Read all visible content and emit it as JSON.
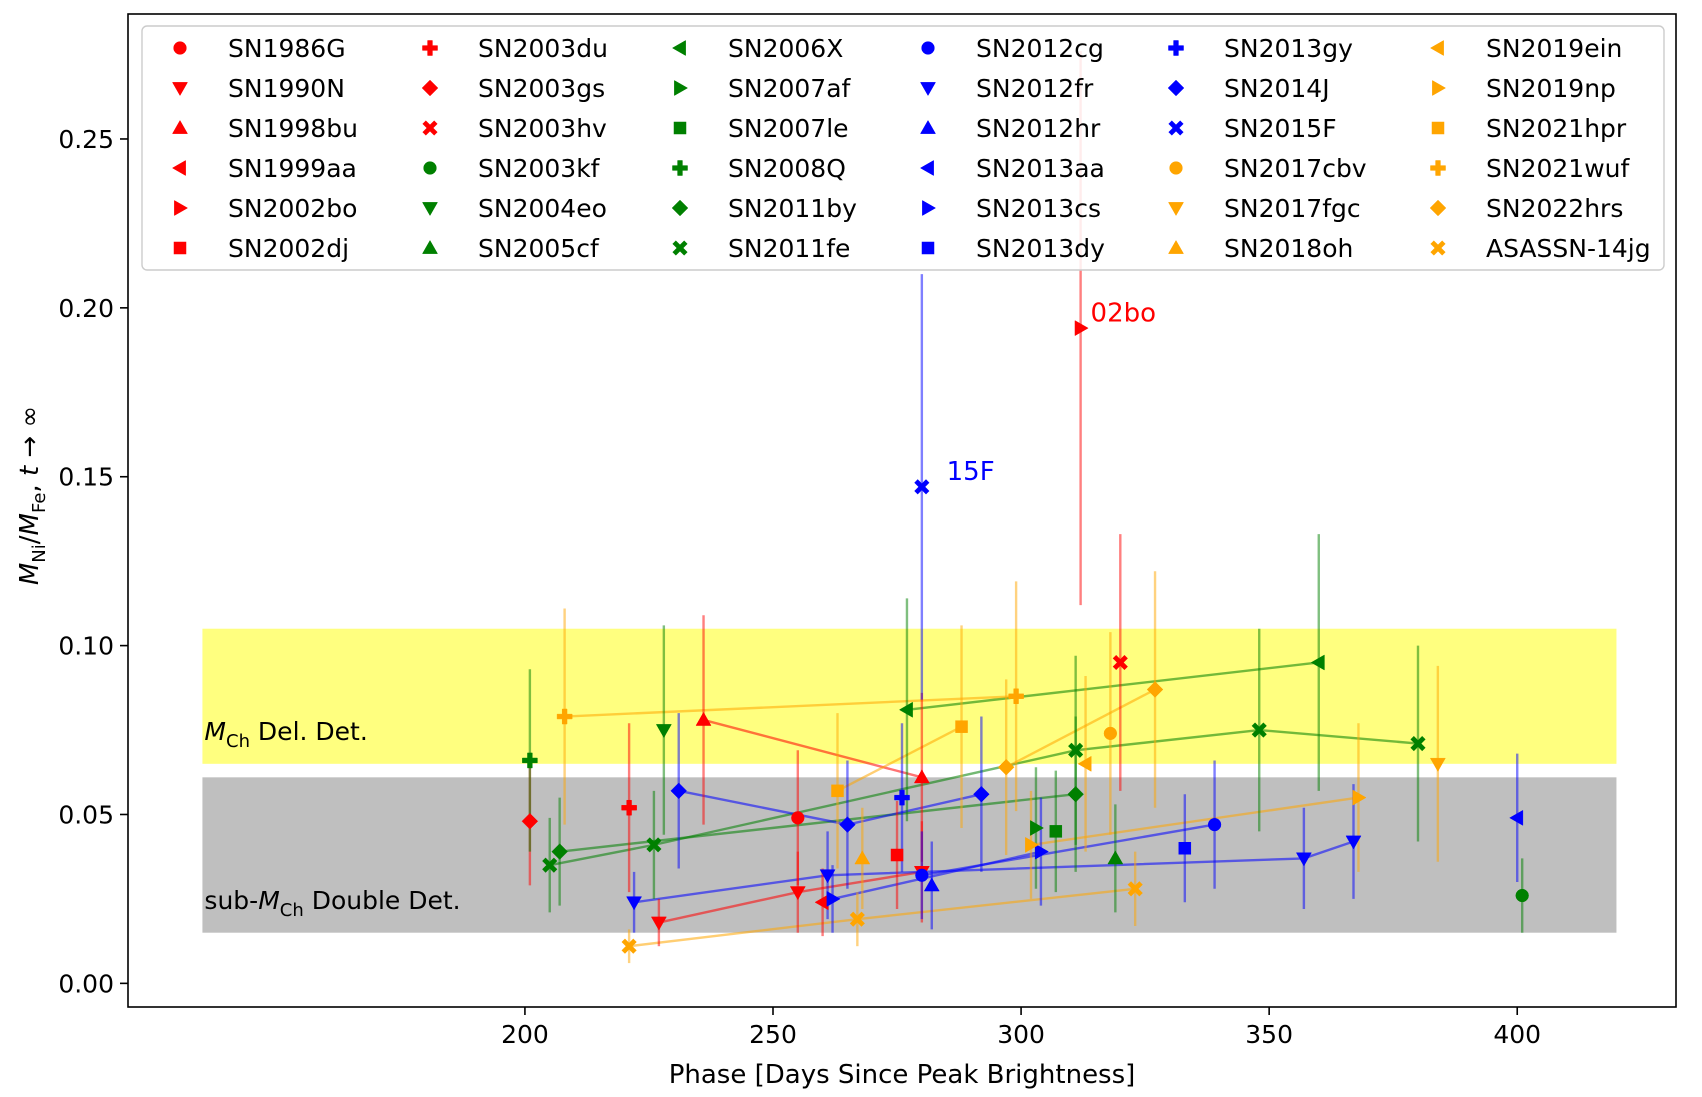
{
  "chart_data": {
    "type": "scatter",
    "title": "",
    "xlabel": "Phase [Days Since Peak Brightness]",
    "ylabel_html": {
      "m": "M",
      "ni": "Ni",
      "slash": "/",
      "m2": "M",
      "fe": "Fe",
      "rest": ", ",
      "t": "t",
      "arrow": " → ∞"
    },
    "xlim": [
      120,
      432
    ],
    "ylim": [
      -0.007,
      0.287
    ],
    "xticks": [
      200,
      250,
      300,
      350,
      400
    ],
    "yticks": [
      0.0,
      0.05,
      0.1,
      0.15,
      0.2,
      0.25
    ],
    "ytick_labels": [
      "0.00",
      "0.05",
      "0.10",
      "0.15",
      "0.20",
      "0.25"
    ],
    "grid": false,
    "legend_position": "top",
    "bands": [
      {
        "name": "mch-band",
        "y0": 0.065,
        "y1": 0.105,
        "x0": 135,
        "x1": 420,
        "color": "#ffff00",
        "alpha": 0.5,
        "label_prefix": "",
        "label_m": "M",
        "label_sub": "Ch",
        "label_suffix": " Del. Det.",
        "label_y": 0.072
      },
      {
        "name": "subch-band",
        "y0": 0.015,
        "y1": 0.061,
        "x0": 135,
        "x1": 420,
        "color": "#808080",
        "alpha": 0.5,
        "label_prefix": "sub-",
        "label_m": "M",
        "label_sub": "Ch",
        "label_suffix": " Double Det.",
        "label_y": 0.022
      }
    ],
    "annotations": [
      {
        "text": "02bo",
        "x": 314,
        "y": 0.196,
        "color": "#ff0000"
      },
      {
        "text": "15F",
        "x": 285,
        "y": 0.149,
        "color": "#0000ff"
      }
    ],
    "series": [
      {
        "name": "SN1986G",
        "color": "#ff0000",
        "marker": "circle",
        "points": [
          [
            255,
            0.049,
            0.02
          ]
        ]
      },
      {
        "name": "SN1990N",
        "color": "#ff0000",
        "marker": "triangle-down",
        "points": [
          [
            227,
            0.018,
            0.007
          ],
          [
            255,
            0.027,
            0.012
          ],
          [
            280,
            0.033,
            0.015
          ]
        ]
      },
      {
        "name": "SN1998bu",
        "color": "#ff0000",
        "marker": "triangle-up",
        "points": [
          [
            236,
            0.078,
            0.031
          ],
          [
            280,
            0.061,
            0.025
          ]
        ]
      },
      {
        "name": "SN1999aa",
        "color": "#ff0000",
        "marker": "triangle-left",
        "points": [
          [
            260,
            0.024,
            0.01
          ]
        ]
      },
      {
        "name": "SN2002bo",
        "color": "#ff0000",
        "marker": "triangle-right",
        "points": [
          [
            312,
            0.194,
            0.082
          ]
        ]
      },
      {
        "name": "SN2002dj",
        "color": "#ff0000",
        "marker": "square",
        "points": [
          [
            275,
            0.038,
            0.016
          ]
        ]
      },
      {
        "name": "SN2003du",
        "color": "#ff0000",
        "marker": "plus",
        "points": [
          [
            221,
            0.052,
            0.025
          ]
        ]
      },
      {
        "name": "SN2003gs",
        "color": "#ff0000",
        "marker": "diamond",
        "points": [
          [
            201,
            0.048,
            0.019
          ]
        ]
      },
      {
        "name": "SN2003hv",
        "color": "#ff0000",
        "marker": "x",
        "points": [
          [
            320,
            0.095,
            0.038
          ]
        ]
      },
      {
        "name": "SN2003kf",
        "color": "#008000",
        "marker": "circle",
        "points": [
          [
            401,
            0.026,
            0.011
          ]
        ]
      },
      {
        "name": "SN2004eo",
        "color": "#008000",
        "marker": "triangle-down",
        "points": [
          [
            228,
            0.075,
            0.031
          ]
        ]
      },
      {
        "name": "SN2005cf",
        "color": "#008000",
        "marker": "triangle-up",
        "points": [
          [
            319,
            0.037,
            0.016
          ]
        ]
      },
      {
        "name": "SN2006X",
        "color": "#008000",
        "marker": "triangle-left",
        "points": [
          [
            277,
            0.081,
            0.033
          ],
          [
            360,
            0.095,
            0.038
          ]
        ]
      },
      {
        "name": "SN2007af",
        "color": "#008000",
        "marker": "triangle-right",
        "points": [
          [
            303,
            0.046,
            0.018
          ]
        ]
      },
      {
        "name": "SN2007le",
        "color": "#008000",
        "marker": "square",
        "points": [
          [
            307,
            0.045,
            0.018
          ]
        ]
      },
      {
        "name": "SN2008Q",
        "color": "#008000",
        "marker": "plus",
        "points": [
          [
            201,
            0.066,
            0.027
          ]
        ]
      },
      {
        "name": "SN2011by",
        "color": "#008000",
        "marker": "diamond",
        "points": [
          [
            207,
            0.039,
            0.016
          ],
          [
            311,
            0.056,
            0.023
          ]
        ]
      },
      {
        "name": "SN2011fe",
        "color": "#008000",
        "marker": "x",
        "points": [
          [
            205,
            0.035,
            0.014
          ],
          [
            226,
            0.041,
            0.016
          ],
          [
            311,
            0.069,
            0.028
          ],
          [
            348,
            0.075,
            0.03
          ],
          [
            380,
            0.071,
            0.029
          ]
        ]
      },
      {
        "name": "SN2012cg",
        "color": "#0000ff",
        "marker": "circle",
        "points": [
          [
            280,
            0.032,
            0.013
          ],
          [
            339,
            0.047,
            0.019
          ]
        ]
      },
      {
        "name": "SN2012fr",
        "color": "#0000ff",
        "marker": "triangle-down",
        "points": [
          [
            222,
            0.024,
            0.009
          ],
          [
            261,
            0.032,
            0.013
          ],
          [
            357,
            0.037,
            0.015
          ],
          [
            367,
            0.042,
            0.017
          ]
        ]
      },
      {
        "name": "SN2012hr",
        "color": "#0000ff",
        "marker": "triangle-up",
        "points": [
          [
            282,
            0.029,
            0.013
          ]
        ]
      },
      {
        "name": "SN2013aa",
        "color": "#0000ff",
        "marker": "triangle-left",
        "points": [
          [
            400,
            0.049,
            0.019
          ]
        ]
      },
      {
        "name": "SN2013cs",
        "color": "#0000ff",
        "marker": "triangle-right",
        "points": [
          [
            262,
            0.025,
            0.01
          ],
          [
            304,
            0.039,
            0.016
          ]
        ]
      },
      {
        "name": "SN2013dy",
        "color": "#0000ff",
        "marker": "square",
        "points": [
          [
            333,
            0.04,
            0.016
          ]
        ]
      },
      {
        "name": "SN2013gy",
        "color": "#0000ff",
        "marker": "plus",
        "points": [
          [
            276,
            0.055,
            0.022
          ]
        ]
      },
      {
        "name": "SN2014J",
        "color": "#0000ff",
        "marker": "diamond",
        "points": [
          [
            231,
            0.057,
            0.023
          ],
          [
            265,
            0.047,
            0.019
          ],
          [
            292,
            0.056,
            0.023
          ]
        ]
      },
      {
        "name": "SN2015F",
        "color": "#0000ff",
        "marker": "x",
        "points": [
          [
            280,
            0.147,
            0.063
          ]
        ]
      },
      {
        "name": "SN2017cbv",
        "color": "#ffa500",
        "marker": "circle",
        "points": [
          [
            318,
            0.074,
            0.03
          ]
        ]
      },
      {
        "name": "SN2017fgc",
        "color": "#ffa500",
        "marker": "triangle-down",
        "points": [
          [
            384,
            0.065,
            0.029
          ]
        ]
      },
      {
        "name": "SN2018oh",
        "color": "#ffa500",
        "marker": "triangle-up",
        "points": [
          [
            268,
            0.037,
            0.015
          ]
        ]
      },
      {
        "name": "SN2019ein",
        "color": "#ffa500",
        "marker": "triangle-left",
        "points": [
          [
            313,
            0.065,
            0.026
          ]
        ]
      },
      {
        "name": "SN2019np",
        "color": "#ffa500",
        "marker": "triangle-right",
        "points": [
          [
            302,
            0.041,
            0.016
          ],
          [
            368,
            0.055,
            0.022
          ]
        ]
      },
      {
        "name": "SN2021hpr",
        "color": "#ffa500",
        "marker": "square",
        "points": [
          [
            263,
            0.057,
            0.023
          ],
          [
            288,
            0.076,
            0.03
          ]
        ]
      },
      {
        "name": "SN2021wuf",
        "color": "#ffa500",
        "marker": "plus",
        "points": [
          [
            208,
            0.079,
            0.032
          ],
          [
            299,
            0.085,
            0.034
          ]
        ]
      },
      {
        "name": "SN2022hrs",
        "color": "#ffa500",
        "marker": "diamond",
        "points": [
          [
            297,
            0.064,
            0.026
          ],
          [
            327,
            0.087,
            0.035
          ]
        ]
      },
      {
        "name": "ASASSN-14jg",
        "color": "#ffa500",
        "marker": "x",
        "points": [
          [
            221,
            0.011,
            0.005
          ],
          [
            267,
            0.019,
            0.008
          ],
          [
            323,
            0.028,
            0.011
          ]
        ]
      }
    ]
  }
}
